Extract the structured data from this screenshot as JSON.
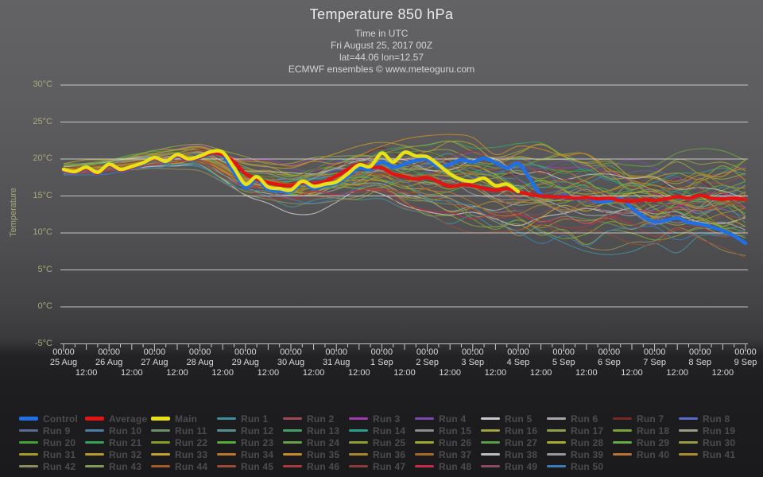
{
  "header": {
    "title": "Temperature 850 hPa",
    "subtitle1": "Time in UTC",
    "subtitle2": "Fri August 25, 2017 00Z",
    "subtitle3": "lat=44.06 lon=12.57",
    "subtitle4": "ECMWF ensembles © www.meteoguru.com"
  },
  "axes": {
    "y_title": "Temperature",
    "y_tick_values": [
      30,
      25,
      20,
      15,
      10,
      5,
      0,
      -5
    ],
    "y_tick_labels": [
      "30°C",
      "25°C",
      "20°C",
      "15°C",
      "10°C",
      "5°C",
      "0°C",
      "-5°C"
    ],
    "x_major_label": "00:00",
    "x_minor_label": "12:00",
    "x_day_labels": [
      "25 Aug",
      "26 Aug",
      "27 Aug",
      "28 Aug",
      "29 Aug",
      "30 Aug",
      "31 Aug",
      "1 Sep",
      "2 Sep",
      "3 Sep",
      "4 Sep",
      "5 Sep",
      "6 Sep",
      "7 Sep",
      "8 Sep",
      "9 Sep"
    ]
  },
  "chart_data": {
    "type": "line",
    "title": "Temperature 850 hPa",
    "xlabel": "Time in UTC",
    "ylabel": "Temperature",
    "ylim": [
      -5,
      30
    ],
    "x_start_hour": 0,
    "x_end_hour": 360,
    "x_step_hours": 6,
    "grid": "horizontal-only",
    "series": [
      {
        "name": "Control",
        "color": "#1f6fe6",
        "width": 4.5,
        "values": [
          18.4,
          18.1,
          18.7,
          18.0,
          19.1,
          18.4,
          18.8,
          19.4,
          20.0,
          19.6,
          20.4,
          19.8,
          20.2,
          20.7,
          20.5,
          18.2,
          16.2,
          17.2,
          15.9,
          15.7,
          15.6,
          16.7,
          16.0,
          16.4,
          16.7,
          17.7,
          18.8,
          18.6,
          19.6,
          18.9,
          19.3,
          19.8,
          19.9,
          18.9,
          19.3,
          19.9,
          19.6,
          20.1,
          19.5,
          18.8,
          19.4,
          17.4,
          15.2,
          14.9,
          15.1,
          14.6,
          14.8,
          14.2,
          14.3,
          14.6,
          13.4,
          12.2,
          11.5,
          11.7,
          12.0,
          11.4,
          11.2,
          10.8,
          10.3,
          9.6,
          8.6
        ]
      },
      {
        "name": "Average",
        "color": "#e31414",
        "width": 4.5,
        "values": [
          18.5,
          18.2,
          18.8,
          18.1,
          19.2,
          18.5,
          18.9,
          19.5,
          20.1,
          19.7,
          20.5,
          19.9,
          20.3,
          20.8,
          20.6,
          19.6,
          18.0,
          17.3,
          16.8,
          16.5,
          16.4,
          16.8,
          16.6,
          17.0,
          17.7,
          18.6,
          19.3,
          18.9,
          18.8,
          18.0,
          17.6,
          17.3,
          17.5,
          16.9,
          16.3,
          16.5,
          16.4,
          16.0,
          15.8,
          16.0,
          15.6,
          15.2,
          15.0,
          14.9,
          14.9,
          14.7,
          14.8,
          14.6,
          14.7,
          14.4,
          14.3,
          14.5,
          14.4,
          14.6,
          14.9,
          14.7,
          15.1,
          14.7,
          14.6,
          14.7,
          14.5
        ]
      },
      {
        "name": "Main",
        "color": "#e8e116",
        "width": 4.5,
        "values": [
          18.6,
          18.3,
          18.9,
          18.2,
          19.3,
          18.6,
          19.0,
          19.5,
          20.2,
          19.7,
          20.6,
          20.0,
          20.4,
          21.0,
          20.9,
          18.8,
          16.6,
          17.6,
          16.2,
          16.0,
          15.8,
          17.0,
          16.3,
          16.6,
          16.9,
          18.0,
          19.2,
          19.0,
          20.8,
          19.6,
          20.9,
          20.4,
          20.3,
          19.2,
          18.0,
          17.2,
          17.0,
          17.4,
          16.4,
          16.6,
          15.6
        ]
      }
    ],
    "ensemble": {
      "count": 50,
      "note": "50 perturbed ensemble member traces spanning the envelope below",
      "envelope_hours": [
        0,
        24,
        48,
        72,
        96,
        120,
        144,
        168,
        192,
        216,
        240,
        264,
        288,
        312,
        336,
        360
      ],
      "envelope_center": [
        18.6,
        19.0,
        20.0,
        20.4,
        17.6,
        16.4,
        17.3,
        18.3,
        17.3,
        16.3,
        15.3,
        14.8,
        14.3,
        13.8,
        14.3,
        14.0
      ],
      "envelope_spread": [
        0.7,
        0.9,
        1.1,
        1.5,
        2.0,
        2.5,
        2.9,
        3.3,
        4.3,
        5.1,
        5.3,
        5.3,
        5.3,
        5.5,
        5.5,
        5.9
      ]
    },
    "legend_entries": [
      {
        "label": "Control",
        "color": "#1f6fe6",
        "thick": true
      },
      {
        "label": "Average",
        "color": "#e31414",
        "thick": true
      },
      {
        "label": "Main",
        "color": "#e8e116",
        "thick": true
      },
      {
        "label": "Run 1",
        "color": "#3f8fa0",
        "thick": false
      },
      {
        "label": "Run 2",
        "color": "#a04858",
        "thick": false
      },
      {
        "label": "Run 3",
        "color": "#a03ab0",
        "thick": false
      },
      {
        "label": "Run 4",
        "color": "#7a48b0",
        "thick": false
      },
      {
        "label": "Run 5",
        "color": "#c8c8c8",
        "thick": false
      },
      {
        "label": "Run 6",
        "color": "#a8a8a8",
        "thick": false
      },
      {
        "label": "Run 7",
        "color": "#7a2626",
        "thick": false
      },
      {
        "label": "Run 8",
        "color": "#5868c8",
        "thick": false
      },
      {
        "label": "Run 9",
        "color": "#5a6a92",
        "thick": false
      },
      {
        "label": "Run 10",
        "color": "#4a7ea6",
        "thick": false
      },
      {
        "label": "Run 11",
        "color": "#6a8f6a",
        "thick": false
      },
      {
        "label": "Run 12",
        "color": "#56908e",
        "thick": false
      },
      {
        "label": "Run 13",
        "color": "#44a066",
        "thick": false
      },
      {
        "label": "Run 14",
        "color": "#28a08c",
        "thick": false
      },
      {
        "label": "Run 15",
        "color": "#8c8c8c",
        "thick": false
      },
      {
        "label": "Run 16",
        "color": "#a2a23c",
        "thick": false
      },
      {
        "label": "Run 17",
        "color": "#8ea04a",
        "thick": false
      },
      {
        "label": "Run 18",
        "color": "#7aa234",
        "thick": false
      },
      {
        "label": "Run 19",
        "color": "#9a9a86",
        "thick": false
      },
      {
        "label": "Run 20",
        "color": "#46a038",
        "thick": false
      },
      {
        "label": "Run 21",
        "color": "#36a05c",
        "thick": false
      },
      {
        "label": "Run 22",
        "color": "#80a028",
        "thick": false
      },
      {
        "label": "Run 23",
        "color": "#58ab38",
        "thick": false
      },
      {
        "label": "Run 24",
        "color": "#68a046",
        "thick": false
      },
      {
        "label": "Run 25",
        "color": "#8ca032",
        "thick": false
      },
      {
        "label": "Run 26",
        "color": "#9cab28",
        "thick": false
      },
      {
        "label": "Run 27",
        "color": "#56a046",
        "thick": false
      },
      {
        "label": "Run 28",
        "color": "#acab28",
        "thick": false
      },
      {
        "label": "Run 29",
        "color": "#64ab46",
        "thick": false
      },
      {
        "label": "Run 30",
        "color": "#9a9a42",
        "thick": false
      },
      {
        "label": "Run 31",
        "color": "#a89a28",
        "thick": false
      },
      {
        "label": "Run 32",
        "color": "#b89a28",
        "thick": false
      },
      {
        "label": "Run 33",
        "color": "#c8a028",
        "thick": false
      },
      {
        "label": "Run 34",
        "color": "#b87828",
        "thick": false
      },
      {
        "label": "Run 35",
        "color": "#c88828",
        "thick": false
      },
      {
        "label": "Run 36",
        "color": "#a88828",
        "thick": false
      },
      {
        "label": "Run 37",
        "color": "#a86828",
        "thick": false
      },
      {
        "label": "Run 38",
        "color": "#bcbcbc",
        "thick": false
      },
      {
        "label": "Run 39",
        "color": "#989898",
        "thick": false
      },
      {
        "label": "Run 40",
        "color": "#b87430",
        "thick": false
      },
      {
        "label": "Run 41",
        "color": "#a88e2c",
        "thick": false
      },
      {
        "label": "Run 42",
        "color": "#8c8c5c",
        "thick": false
      },
      {
        "label": "Run 43",
        "color": "#7c9c5c",
        "thick": false
      },
      {
        "label": "Run 44",
        "color": "#a85828",
        "thick": false
      },
      {
        "label": "Run 45",
        "color": "#9c4a38",
        "thick": false
      },
      {
        "label": "Run 46",
        "color": "#a83a3a",
        "thick": false
      },
      {
        "label": "Run 47",
        "color": "#8c3a3a",
        "thick": false
      },
      {
        "label": "Run 48",
        "color": "#c82a4a",
        "thick": false
      },
      {
        "label": "Run 49",
        "color": "#8c4a5c",
        "thick": false
      },
      {
        "label": "Run 50",
        "color": "#3a7cb8",
        "thick": false
      }
    ]
  },
  "colors": {
    "background_top": "#636365",
    "background_bottom": "#1a1a1c",
    "gridline": "#e2e2e2",
    "axis_tick": "#c8c8c8",
    "y_label": "#a9a97c",
    "x_label": "#d9d9d9",
    "legend_label": "#4c4c4c",
    "title_text": "#ebebeb"
  }
}
